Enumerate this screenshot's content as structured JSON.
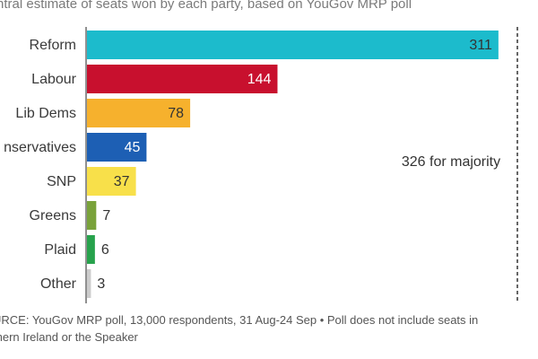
{
  "header": {
    "subtitle": "ntral estimate of seats won by each party, based on YouGov MRP poll"
  },
  "chart_data": {
    "type": "bar",
    "orientation": "horizontal",
    "categories": [
      "Reform",
      "Labour",
      "Lib Dems",
      "nservatives",
      "SNP",
      "Greens",
      "Plaid",
      "Other"
    ],
    "values": [
      311,
      144,
      78,
      45,
      37,
      7,
      6,
      3
    ],
    "colors": [
      "#1cbbcc",
      "#c8102e",
      "#f6b12d",
      "#1d5fb4",
      "#f8e04a",
      "#79a23a",
      "#27a24c",
      "#cccccc"
    ],
    "value_label_colors": [
      "#333333",
      "#ffffff",
      "#333333",
      "#ffffff",
      "#333333",
      "#333333",
      "#333333",
      "#333333"
    ],
    "xlim": [
      0,
      326
    ],
    "reference_line": {
      "value": 326,
      "label": "326 for majority",
      "style": "dashed"
    },
    "grid": false,
    "legend": "none"
  },
  "footer": {
    "source_line1": "URCE: YouGov MRP poll, 13,000 respondents, 31 Aug-24 Sep • Poll does not include seats in",
    "source_line2": "thern Ireland or the Speaker"
  }
}
